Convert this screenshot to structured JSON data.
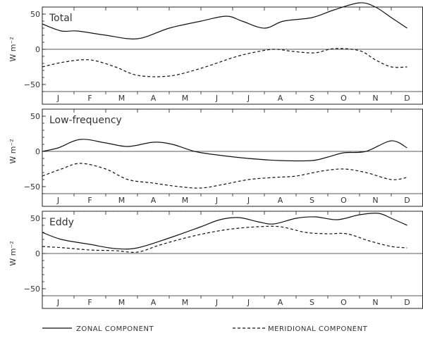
{
  "chart_data": [
    {
      "type": "line",
      "title": "Total",
      "ylabel": "W m⁻²",
      "ylim": [
        -60,
        60
      ],
      "yticks": [
        50,
        0,
        -50
      ],
      "months": [
        "J",
        "F",
        "M",
        "A",
        "M",
        "J",
        "J",
        "A",
        "S",
        "O",
        "N",
        "D"
      ],
      "series": [
        {
          "name": "ZONAL COMPONENT",
          "style": "solid",
          "x": [
            0,
            0.6,
            1.1,
            2.0,
            3.0,
            4.0,
            5.0,
            5.8,
            6.3,
            7.0,
            7.6,
            8.5,
            9.2,
            10.0,
            10.5,
            11.0,
            11.5
          ],
          "y": [
            36,
            26,
            26,
            20,
            15,
            30,
            40,
            47,
            40,
            30,
            40,
            45,
            56,
            66,
            60,
            45,
            30
          ]
        },
        {
          "name": "MERIDIONAL COMPONENT",
          "style": "dashed",
          "x": [
            0,
            0.7,
            1.5,
            2.3,
            3.0,
            4.0,
            5.0,
            6.0,
            6.6,
            7.3,
            7.9,
            8.6,
            9.2,
            10.0,
            10.5,
            11.0,
            11.5
          ],
          "y": [
            -25,
            -18,
            -15,
            -25,
            -37,
            -38,
            -27,
            -12,
            -5,
            0,
            -3,
            -5,
            1,
            -2,
            -15,
            -25,
            -25
          ]
        }
      ]
    },
    {
      "type": "line",
      "title": "Low-frequency",
      "ylabel": "W m⁻²",
      "ylim": [
        -60,
        60
      ],
      "yticks": [
        50,
        0,
        -50
      ],
      "months": [
        "J",
        "F",
        "M",
        "A",
        "M",
        "J",
        "J",
        "A",
        "S",
        "O",
        "N",
        "D"
      ],
      "series": [
        {
          "name": "ZONAL COMPONENT",
          "style": "solid",
          "x": [
            0,
            0.5,
            1.2,
            2.0,
            2.7,
            3.5,
            4.1,
            4.8,
            5.5,
            6.5,
            7.5,
            8.5,
            9.0,
            9.5,
            10.2,
            11.0,
            11.5
          ],
          "y": [
            0,
            5,
            17,
            12,
            7,
            13,
            10,
            0,
            -5,
            -10,
            -13,
            -13,
            -8,
            -2,
            0,
            15,
            5
          ]
        },
        {
          "name": "MERIDIONAL COMPONENT",
          "style": "dashed",
          "x": [
            0,
            0.6,
            1.2,
            2.0,
            2.7,
            3.5,
            4.3,
            5.0,
            5.7,
            6.5,
            7.3,
            8.0,
            8.8,
            9.5,
            10.2,
            11.0,
            11.5
          ],
          "y": [
            -35,
            -25,
            -17,
            -25,
            -40,
            -45,
            -50,
            -52,
            -47,
            -40,
            -37,
            -35,
            -28,
            -25,
            -30,
            -40,
            -37
          ]
        }
      ]
    },
    {
      "type": "line",
      "title": "Eddy",
      "ylabel": "W m⁻²",
      "ylim": [
        -60,
        60
      ],
      "yticks": [
        50,
        0,
        -50
      ],
      "months": [
        "J",
        "F",
        "M",
        "A",
        "M",
        "J",
        "J",
        "A",
        "S",
        "O",
        "N",
        "D"
      ],
      "series": [
        {
          "name": "ZONAL COMPONENT",
          "style": "solid",
          "x": [
            0,
            0.6,
            1.5,
            2.3,
            3.0,
            4.0,
            5.0,
            5.6,
            6.2,
            6.8,
            7.3,
            8.0,
            8.6,
            9.3,
            10.0,
            10.6,
            11.0,
            11.5
          ],
          "y": [
            30,
            20,
            13,
            7,
            8,
            22,
            38,
            48,
            51,
            45,
            42,
            50,
            52,
            48,
            55,
            57,
            50,
            40
          ]
        },
        {
          "name": "MERIDIONAL COMPONENT",
          "style": "dashed",
          "x": [
            0,
            0.7,
            1.5,
            2.3,
            3.0,
            3.7,
            4.5,
            5.3,
            6.0,
            6.8,
            7.5,
            8.3,
            9.0,
            9.6,
            10.3,
            11.0,
            11.5
          ],
          "y": [
            10,
            8,
            5,
            4,
            2,
            12,
            22,
            30,
            35,
            38,
            38,
            30,
            28,
            28,
            18,
            10,
            8
          ]
        }
      ]
    }
  ],
  "legend": {
    "zonal_label": "ZONAL COMPONENT",
    "meridional_label": "MERIDIONAL COMPONENT"
  }
}
